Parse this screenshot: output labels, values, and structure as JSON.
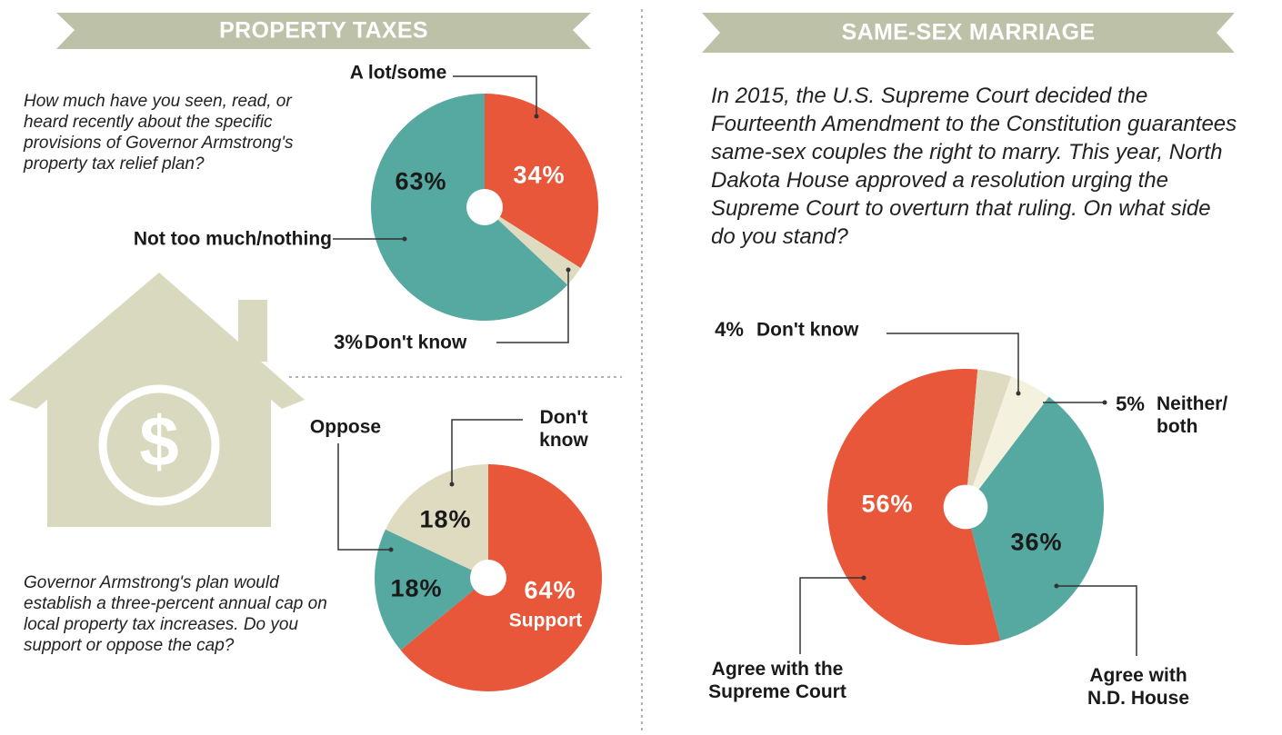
{
  "sections": [
    {
      "title": "PROPERTY TAXES"
    },
    {
      "title": "SAME-SEX MARRIAGE"
    }
  ],
  "chart_data": [
    {
      "type": "pie",
      "question": "How much have you seen, read, or heard recently about the specific provisions of Governor Armstrong's property tax relief plan?",
      "categories": [
        "A lot/some",
        "Don't know",
        "Not too much/nothing"
      ],
      "values": [
        34,
        3,
        63
      ],
      "value_labels": [
        "34%",
        "3%",
        "63%"
      ],
      "colors": [
        "#e8573a",
        "#dedbc0",
        "#55a9a0"
      ]
    },
    {
      "type": "pie",
      "question": "Governor Armstrong's plan would establish a three-percent annual cap on local property tax increases. Do you support or oppose the cap?",
      "categories": [
        "Support",
        "Oppose",
        "Don't know"
      ],
      "values": [
        64,
        18,
        18
      ],
      "value_labels": [
        "64%",
        "18%",
        "18%"
      ],
      "colors": [
        "#e8573a",
        "#55a9a0",
        "#dedbc0"
      ]
    },
    {
      "type": "pie",
      "question": "In 2015, the U.S. Supreme Court decided the Fourteenth Amendment to the Constitution guarantees same-sex couples the right to marry. This year, North Dakota House approved a resolution urging the Supreme Court to overturn that ruling. On what side do you stand?",
      "categories": [
        "Agree with the Supreme Court",
        "Don't know",
        "Neither/ both",
        "Agree with N.D. House"
      ],
      "values": [
        56,
        4,
        5,
        36
      ],
      "value_labels": [
        "56%",
        "4%",
        "5%",
        "36%"
      ],
      "colors": [
        "#e8573a",
        "#dedbc0",
        "#f4f2df",
        "#55a9a0"
      ]
    }
  ]
}
